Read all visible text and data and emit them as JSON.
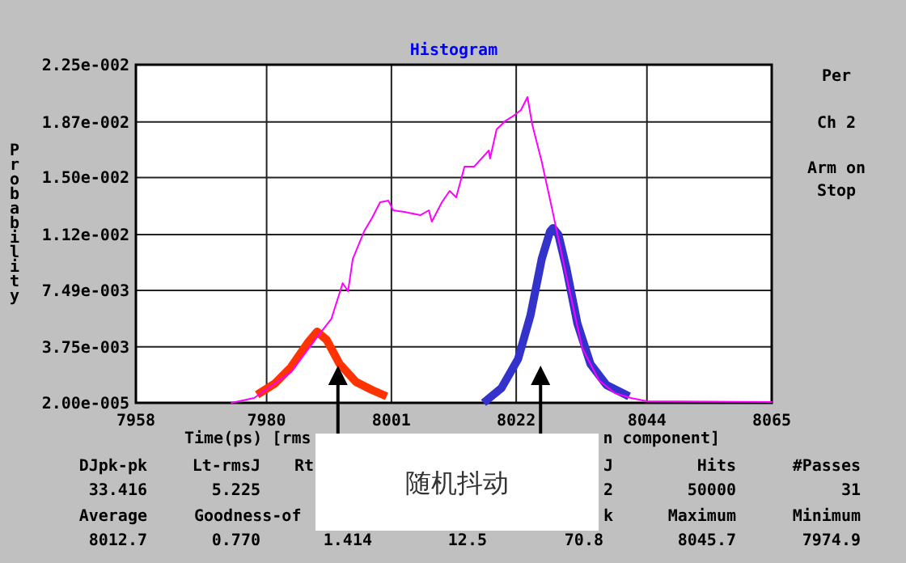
{
  "chart_data": {
    "type": "line",
    "title": "Histogram",
    "xlabel": "Time(ps) [rms",
    "ylabel": "Probability",
    "xlim": [
      7958,
      8065
    ],
    "xticks": [
      7958,
      7980,
      8001,
      8022,
      8044,
      8065
    ],
    "ylim": [
      2e-05,
      0.0225
    ],
    "yticks": [
      {
        "value": 2e-05,
        "label": "2.00e-005"
      },
      {
        "value": 0.00375,
        "label": "3.75e-003"
      },
      {
        "value": 0.00749,
        "label": "7.49e-003"
      },
      {
        "value": 0.0112,
        "label": "1.12e-002"
      },
      {
        "value": 0.015,
        "label": "1.50e-002"
      },
      {
        "value": 0.0187,
        "label": "1.87e-002"
      },
      {
        "value": 0.0225,
        "label": "2.25e-002"
      }
    ],
    "grid": true,
    "series": [
      {
        "color": "#ff00ff",
        "x": [
          7974.1,
          7977.9,
          7984.1,
          7988.8,
          7990.9,
          7992.8,
          7993.7,
          7994.5,
          7996.4,
          7997.7,
          7999.1,
          8000.5,
          8001.3,
          8003.2,
          8005.9,
          8007.3,
          8007.8,
          8009.5,
          8010.8,
          8011.9,
          8013.3,
          8014.9,
          8017.4,
          8017.6,
          8018.7,
          8020.1,
          8021.4,
          8022.8,
          8023.9,
          8024.7,
          8026.3,
          8028.2,
          8030.4,
          8033.1,
          8035.9,
          8038.6,
          8041.3,
          8044.0,
          8065.0
        ],
        "values": [
          2e-05,
          0.00034,
          0.00206,
          0.00454,
          0.00561,
          0.00798,
          0.00744,
          0.00959,
          0.01142,
          0.01228,
          0.01336,
          0.01346,
          0.01282,
          0.01271,
          0.0125,
          0.01282,
          0.01207,
          0.01336,
          0.01411,
          0.01368,
          0.01572,
          0.01572,
          0.0168,
          0.01626,
          0.0182,
          0.01874,
          0.01906,
          0.01949,
          0.02035,
          0.01852,
          0.01605,
          0.01261,
          0.00852,
          0.00368,
          0.00153,
          0.00067,
          0.00034,
          0.00013,
          7e-05
        ]
      },
      {
        "color": "#ff3300",
        "x": [
          7978.4,
          7981.4,
          7984.1,
          7986.9,
          7988.5,
          7990.1,
          7992.3,
          7995.0,
          7997.7,
          8000.2
        ],
        "values": [
          0.00056,
          0.00131,
          0.00239,
          0.004,
          0.00475,
          0.00421,
          0.0026,
          0.00142,
          0.00088,
          0.00045
        ]
      },
      {
        "color": "#3333cc",
        "x": [
          8016.5,
          8019.5,
          8022.3,
          8024.4,
          8026.3,
          8027.7,
          8028.2,
          8029.1,
          8030.4,
          8032.3,
          8034.5,
          8037.2,
          8041.0
        ],
        "values": [
          2e-05,
          0.00099,
          0.00292,
          0.00583,
          0.00959,
          0.01142,
          0.01164,
          0.0112,
          0.00905,
          0.00529,
          0.0026,
          0.0012,
          0.00045
        ]
      }
    ],
    "annotations": [
      "Per",
      "Ch 2",
      "Arm on",
      "Stop",
      "n component]",
      "随机抖动",
      "DJpk-pk",
      "Lt-rmsJ",
      "Rt",
      "J",
      "Hits",
      "#Passes",
      "33.416",
      "5.225",
      "2",
      "50000",
      "31",
      "Average",
      "Goodness-of",
      "k",
      "Maximum",
      "Minimum",
      "8012.7",
      "0.770",
      "1.414",
      "12.5",
      "70.8",
      "8045.7",
      "7974.9"
    ]
  }
}
